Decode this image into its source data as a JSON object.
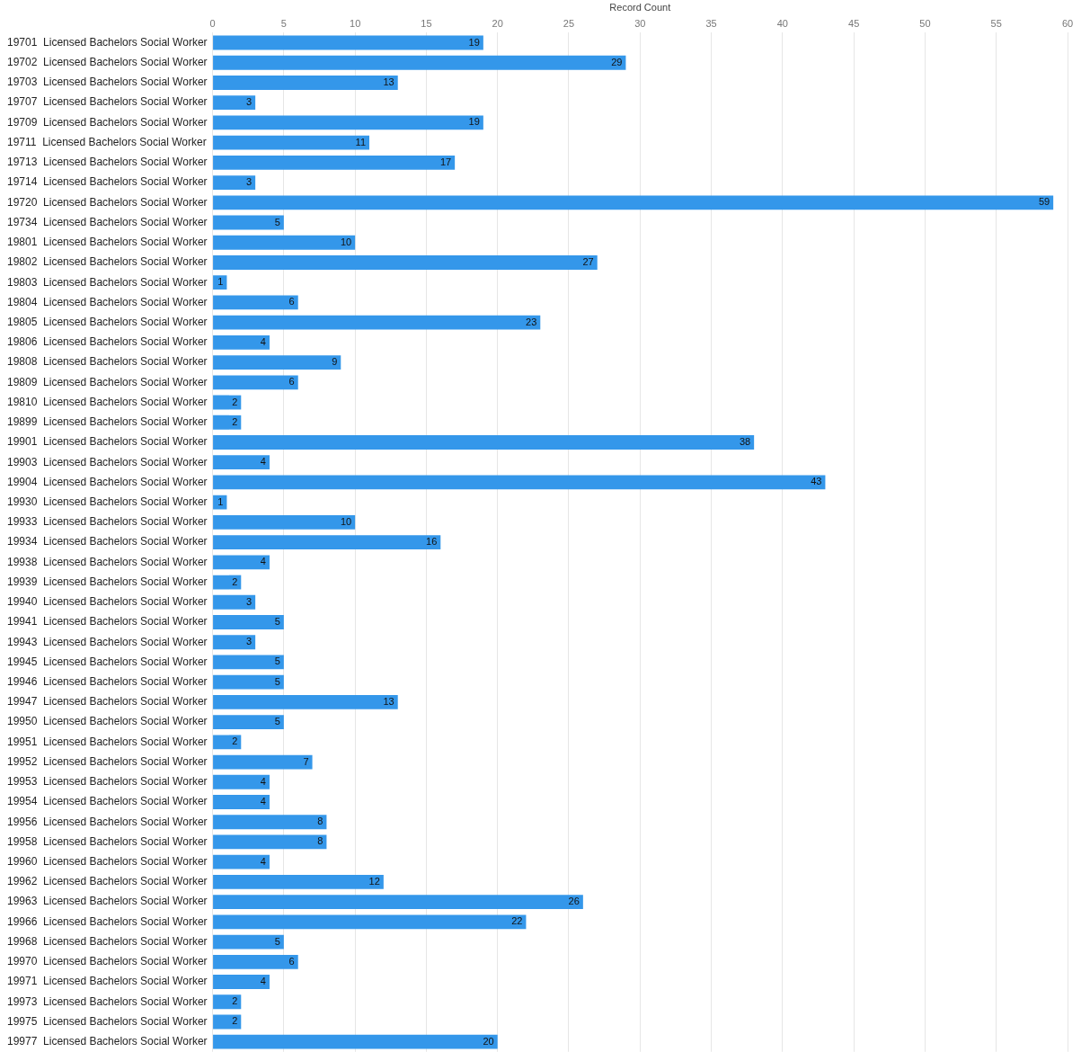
{
  "chart_data": {
    "type": "bar",
    "orientation": "horizontal",
    "xlabel": "Record Count",
    "categories": [
      "19701  Licensed Bachelors Social Worker",
      "19702  Licensed Bachelors Social Worker",
      "19703  Licensed Bachelors Social Worker",
      "19707  Licensed Bachelors Social Worker",
      "19709  Licensed Bachelors Social Worker",
      "19711  Licensed Bachelors Social Worker",
      "19713  Licensed Bachelors Social Worker",
      "19714  Licensed Bachelors Social Worker",
      "19720  Licensed Bachelors Social Worker",
      "19734  Licensed Bachelors Social Worker",
      "19801  Licensed Bachelors Social Worker",
      "19802  Licensed Bachelors Social Worker",
      "19803  Licensed Bachelors Social Worker",
      "19804  Licensed Bachelors Social Worker",
      "19805  Licensed Bachelors Social Worker",
      "19806  Licensed Bachelors Social Worker",
      "19808  Licensed Bachelors Social Worker",
      "19809  Licensed Bachelors Social Worker",
      "19810  Licensed Bachelors Social Worker",
      "19899  Licensed Bachelors Social Worker",
      "19901  Licensed Bachelors Social Worker",
      "19903  Licensed Bachelors Social Worker",
      "19904  Licensed Bachelors Social Worker",
      "19930  Licensed Bachelors Social Worker",
      "19933  Licensed Bachelors Social Worker",
      "19934  Licensed Bachelors Social Worker",
      "19938  Licensed Bachelors Social Worker",
      "19939  Licensed Bachelors Social Worker",
      "19940  Licensed Bachelors Social Worker",
      "19941  Licensed Bachelors Social Worker",
      "19943  Licensed Bachelors Social Worker",
      "19945  Licensed Bachelors Social Worker",
      "19946  Licensed Bachelors Social Worker",
      "19947  Licensed Bachelors Social Worker",
      "19950  Licensed Bachelors Social Worker",
      "19951  Licensed Bachelors Social Worker",
      "19952  Licensed Bachelors Social Worker",
      "19953  Licensed Bachelors Social Worker",
      "19954  Licensed Bachelors Social Worker",
      "19956  Licensed Bachelors Social Worker",
      "19958  Licensed Bachelors Social Worker",
      "19960  Licensed Bachelors Social Worker",
      "19962  Licensed Bachelors Social Worker",
      "19963  Licensed Bachelors Social Worker",
      "19966  Licensed Bachelors Social Worker",
      "19968  Licensed Bachelors Social Worker",
      "19970  Licensed Bachelors Social Worker",
      "19971  Licensed Bachelors Social Worker",
      "19973  Licensed Bachelors Social Worker",
      "19975  Licensed Bachelors Social Worker",
      "19977  Licensed Bachelors Social Worker"
    ],
    "values": [
      19,
      29,
      13,
      3,
      19,
      11,
      17,
      3,
      59,
      5,
      10,
      27,
      1,
      6,
      23,
      4,
      9,
      6,
      2,
      2,
      38,
      4,
      43,
      1,
      10,
      16,
      4,
      2,
      3,
      5,
      3,
      5,
      5,
      13,
      5,
      2,
      7,
      4,
      4,
      8,
      8,
      4,
      12,
      26,
      22,
      5,
      6,
      4,
      2,
      2,
      20
    ],
    "color": "#3497ea",
    "data_labels": true,
    "grid": "x",
    "xlim": [
      0,
      60
    ],
    "xticks": [
      0,
      5,
      10,
      15,
      20,
      25,
      30,
      35,
      40,
      45,
      50,
      55,
      60
    ]
  }
}
